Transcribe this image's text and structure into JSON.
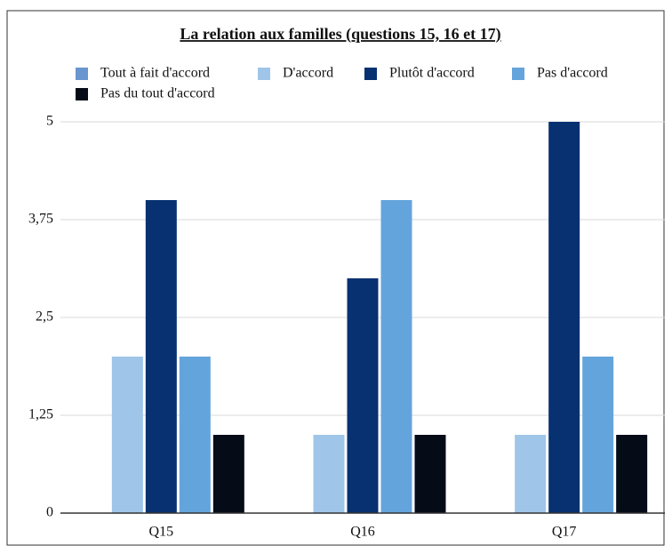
{
  "chart_data": {
    "type": "bar",
    "title": "La relation aux familles (questions 15, 16 et 17)",
    "categories": [
      "Q15",
      "Q16",
      "Q17"
    ],
    "series": [
      {
        "name": "Tout à fait d'accord",
        "color": "#6a96cf",
        "values": [
          0,
          0,
          0
        ]
      },
      {
        "name": "D'accord",
        "color": "#9fc5e8",
        "values": [
          2,
          1,
          1
        ]
      },
      {
        "name": "Plutôt d'accord",
        "color": "#073170",
        "values": [
          4,
          3,
          5
        ]
      },
      {
        "name": "Pas d'accord",
        "color": "#64a4dc",
        "values": [
          2,
          4,
          2
        ]
      },
      {
        "name": "Pas du tout d'accord",
        "color": "#050c17",
        "values": [
          1,
          1,
          1
        ]
      }
    ],
    "ylim": [
      0,
      5
    ],
    "yticks": [
      0,
      {
        "value": 1.25,
        "label": "1,25"
      },
      {
        "value": 2.5,
        "label": "2,5"
      },
      {
        "value": 3.75,
        "label": "3,75"
      },
      5
    ],
    "grid": true
  }
}
